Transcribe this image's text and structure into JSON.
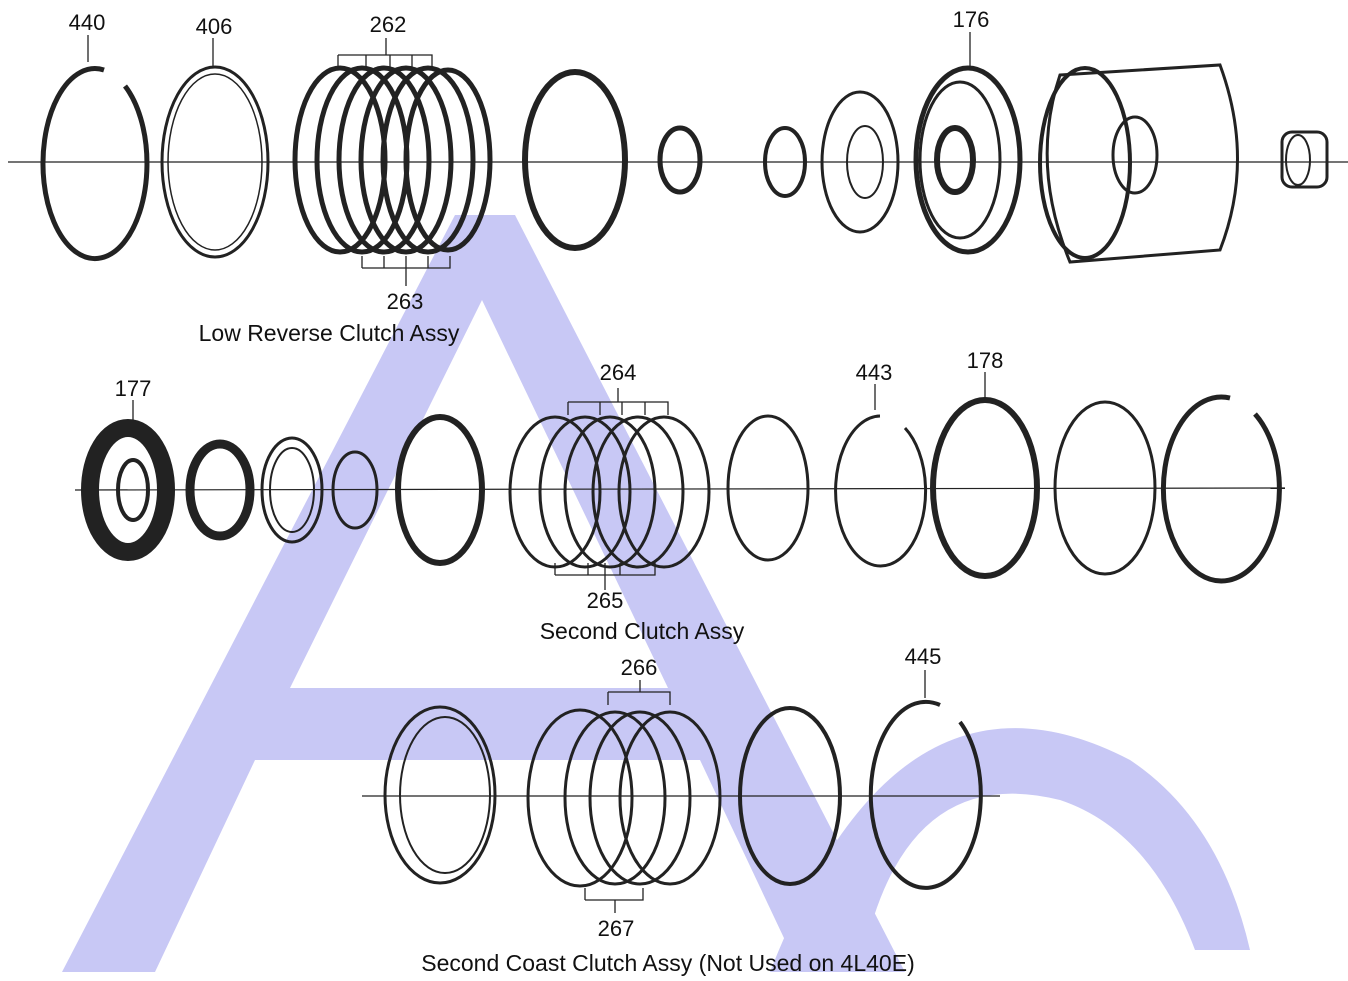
{
  "watermark": {
    "color": "#c8c8f5",
    "glyph": "A"
  },
  "colors": {
    "ink": "#222222",
    "watermark": "#c8c8f5"
  },
  "rows": [
    {
      "caption": "Low Reverse Clutch Assy",
      "labels": {
        "p440": "440",
        "p406": "406",
        "p262": "262",
        "p263": "263",
        "p176": "176"
      }
    },
    {
      "caption": "Second Clutch Assy",
      "labels": {
        "p177": "177",
        "p264": "264",
        "p265": "265",
        "p443": "443",
        "p178": "178"
      }
    },
    {
      "caption": "Second Coast Clutch Assy (Not Used on 4L40E)",
      "labels": {
        "p266": "266",
        "p267": "267",
        "p445": "445"
      }
    }
  ]
}
